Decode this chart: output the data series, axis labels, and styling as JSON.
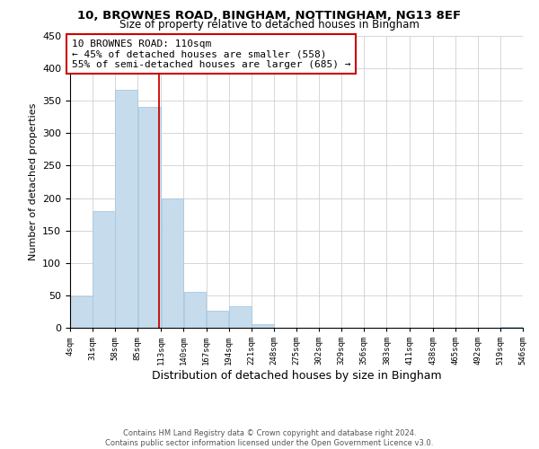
{
  "title1": "10, BROWNES ROAD, BINGHAM, NOTTINGHAM, NG13 8EF",
  "title2": "Size of property relative to detached houses in Bingham",
  "xlabel": "Distribution of detached houses by size in Bingham",
  "ylabel": "Number of detached properties",
  "bar_color": "#c6dcec",
  "bar_edge_color": "#a8c8e0",
  "bin_edges": [
    4,
    31,
    58,
    85,
    113,
    140,
    167,
    194,
    221,
    248,
    275,
    302,
    329,
    356,
    383,
    411,
    438,
    465,
    492,
    519,
    546
  ],
  "bin_labels": [
    "4sqm",
    "31sqm",
    "58sqm",
    "85sqm",
    "113sqm",
    "140sqm",
    "167sqm",
    "194sqm",
    "221sqm",
    "248sqm",
    "275sqm",
    "302sqm",
    "329sqm",
    "356sqm",
    "383sqm",
    "411sqm",
    "438sqm",
    "465sqm",
    "492sqm",
    "519sqm",
    "546sqm"
  ],
  "counts": [
    49,
    180,
    367,
    340,
    200,
    55,
    26,
    33,
    6,
    0,
    0,
    0,
    0,
    0,
    0,
    0,
    0,
    0,
    0,
    1
  ],
  "vline_x": 110,
  "vline_color": "#cc0000",
  "annotation_line1": "10 BROWNES ROAD: 110sqm",
  "annotation_line2": "← 45% of detached houses are smaller (558)",
  "annotation_line3": "55% of semi-detached houses are larger (685) →",
  "annotation_box_color": "#ffffff",
  "annotation_box_edge": "#cc0000",
  "ylim": [
    0,
    450
  ],
  "yticks": [
    0,
    50,
    100,
    150,
    200,
    250,
    300,
    350,
    400,
    450
  ],
  "footer1": "Contains HM Land Registry data © Crown copyright and database right 2024.",
  "footer2": "Contains public sector information licensed under the Open Government Licence v3.0.",
  "background_color": "#ffffff",
  "grid_color": "#d0d0d0"
}
